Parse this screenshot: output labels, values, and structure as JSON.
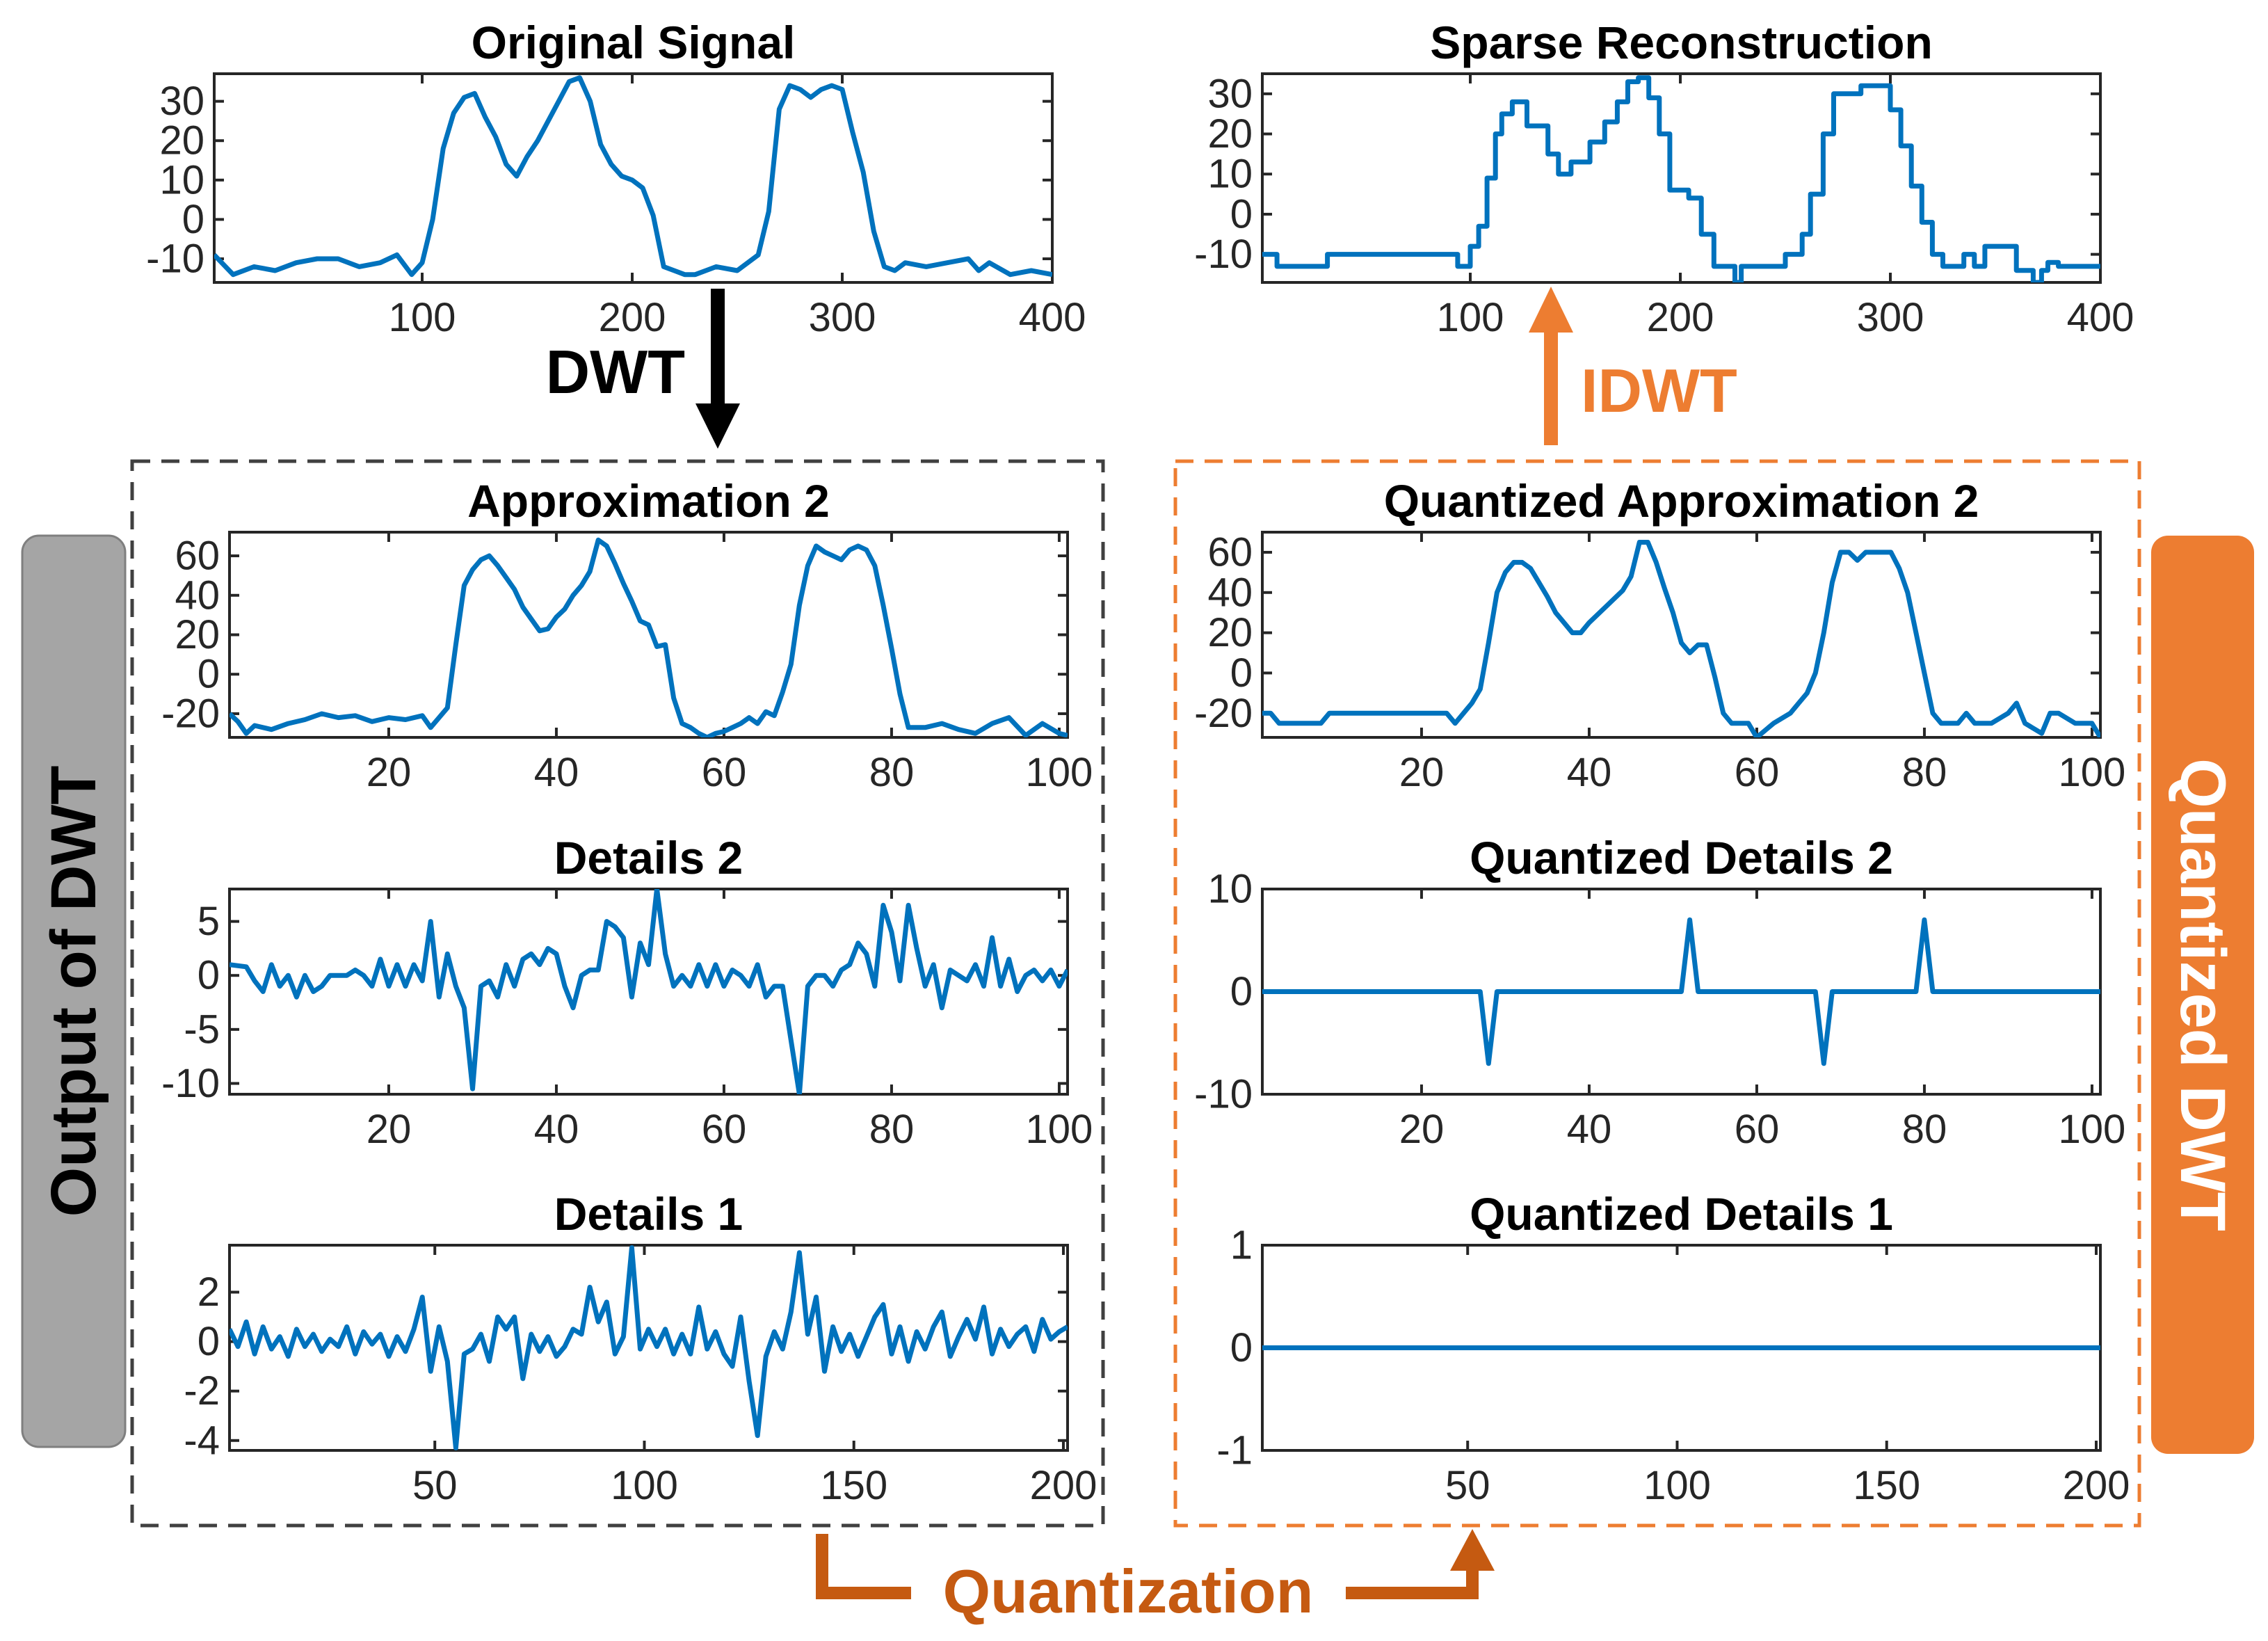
{
  "labels": {
    "dwt": "DWT",
    "idwt": "IDWT",
    "quantization": "Quantization",
    "output_of_dwt": "Output of DWT",
    "quantized_dwt": "Quantized DWT"
  },
  "colors": {
    "line": "#0072BD",
    "orange": "#ED7D31",
    "orange_dark": "#C55A11",
    "gray_box": "#A5A5A5",
    "black": "#000000"
  },
  "chart_data": [
    {
      "id": "original_signal",
      "type": "line",
      "title": "Original Signal",
      "xlim": [
        1,
        400
      ],
      "ylim": [
        -16,
        37
      ],
      "xticks": [
        100,
        200,
        300,
        400
      ],
      "yticks": [
        -10,
        0,
        10,
        20,
        30
      ],
      "x": [
        1,
        10,
        20,
        30,
        40,
        50,
        60,
        70,
        80,
        88,
        95,
        100,
        105,
        110,
        115,
        120,
        125,
        130,
        135,
        140,
        145,
        150,
        155,
        160,
        165,
        170,
        175,
        180,
        185,
        190,
        195,
        200,
        205,
        210,
        215,
        220,
        225,
        230,
        240,
        250,
        260,
        265,
        270,
        275,
        280,
        285,
        290,
        295,
        300,
        305,
        310,
        315,
        320,
        325,
        330,
        340,
        350,
        360,
        365,
        370,
        380,
        390,
        400
      ],
      "values": [
        -9,
        -14,
        -12,
        -13,
        -11,
        -10,
        -10,
        -12,
        -11,
        -9,
        -14,
        -11,
        0,
        18,
        27,
        31,
        32,
        26,
        21,
        14,
        11,
        16,
        20,
        25,
        30,
        35,
        36,
        30,
        19,
        14,
        11,
        10,
        8,
        1,
        -12,
        -13,
        -14,
        -14,
        -12,
        -13,
        -9,
        2,
        28,
        34,
        33,
        31,
        33,
        34,
        33,
        22,
        12,
        -3,
        -12,
        -13,
        -11,
        -12,
        -11,
        -10,
        -13,
        -11,
        -14,
        -13,
        -14
      ]
    },
    {
      "id": "sparse_reconstruction",
      "type": "line",
      "title": "Sparse Reconstruction",
      "xlim": [
        1,
        400
      ],
      "ylim": [
        -17,
        35
      ],
      "xticks": [
        100,
        200,
        300,
        400
      ],
      "yticks": [
        -10,
        0,
        10,
        20,
        30
      ],
      "x": [
        1,
        8,
        8,
        32,
        32,
        94,
        94,
        100,
        100,
        104,
        104,
        108,
        108,
        112,
        112,
        115,
        115,
        120,
        120,
        127,
        127,
        137,
        137,
        142,
        142,
        148,
        148,
        157,
        157,
        164,
        164,
        170,
        170,
        175,
        175,
        180,
        180,
        185,
        185,
        190,
        190,
        195,
        195,
        204,
        204,
        210,
        210,
        216,
        216,
        226,
        226,
        229,
        229,
        250,
        250,
        258,
        258,
        262,
        262,
        268,
        268,
        273,
        273,
        286,
        286,
        300,
        300,
        305,
        305,
        310,
        310,
        315,
        315,
        320,
        320,
        325,
        325,
        335,
        335,
        340,
        340,
        345,
        345,
        360,
        360,
        368,
        368,
        372,
        372,
        375,
        375,
        380,
        380,
        400
      ],
      "values": [
        -10,
        -10,
        -13,
        -13,
        -10,
        -10,
        -13,
        -13,
        -8,
        -8,
        -3,
        -3,
        9,
        9,
        20,
        20,
        25,
        25,
        28,
        28,
        22,
        22,
        15,
        15,
        10,
        10,
        13,
        13,
        18,
        18,
        23,
        23,
        28,
        28,
        33,
        33,
        34,
        34,
        29,
        29,
        20,
        20,
        6,
        6,
        4,
        4,
        -5,
        -5,
        -13,
        -13,
        -17,
        -17,
        -13,
        -13,
        -10,
        -10,
        -5,
        -5,
        5,
        5,
        20,
        20,
        30,
        30,
        32,
        32,
        26,
        26,
        17,
        17,
        7,
        7,
        -2,
        -2,
        -10,
        -10,
        -13,
        -13,
        -10,
        -10,
        -13,
        -13,
        -8,
        -8,
        -14,
        -14,
        -17,
        -17,
        -14,
        -14,
        -12,
        -12,
        -13,
        -13
      ]
    },
    {
      "id": "approximation_2",
      "type": "line",
      "title": "Approximation 2",
      "xlim": [
        1,
        101
      ],
      "ylim": [
        -32,
        72
      ],
      "xticks": [
        20,
        40,
        60,
        80,
        100
      ],
      "yticks": [
        -20,
        0,
        20,
        40,
        60
      ],
      "x": [
        1,
        2,
        3,
        4,
        6,
        8,
        10,
        12,
        14,
        16,
        18,
        20,
        22,
        24,
        25,
        26,
        27,
        28,
        29,
        30,
        31,
        32,
        33,
        34,
        35,
        36,
        37,
        38,
        39,
        40,
        41,
        42,
        43,
        44,
        45,
        46,
        47,
        48,
        49,
        50,
        51,
        52,
        53,
        54,
        55,
        56,
        57,
        58,
        59,
        60,
        61,
        62,
        63,
        64,
        65,
        66,
        67,
        68,
        69,
        70,
        71,
        72,
        73,
        74,
        75,
        76,
        77,
        78,
        79,
        80,
        81,
        82,
        84,
        86,
        88,
        90,
        92,
        94,
        96,
        98,
        100,
        101
      ],
      "values": [
        -20,
        -24,
        -30,
        -26,
        -28,
        -25,
        -23,
        -20,
        -22,
        -21,
        -24,
        -22,
        -23,
        -21,
        -27,
        -22,
        -17,
        15,
        45,
        53,
        58,
        60,
        55,
        49,
        43,
        34,
        28,
        22,
        23,
        29,
        33,
        40,
        45,
        52,
        68,
        65,
        56,
        46,
        37,
        27,
        25,
        14,
        15,
        -12,
        -25,
        -27,
        -30,
        -32,
        -30,
        -29,
        -27,
        -25,
        -22,
        -25,
        -19,
        -21,
        -9,
        5,
        35,
        55,
        65,
        62,
        60,
        58,
        63,
        65,
        63,
        55,
        35,
        13,
        -10,
        -27,
        -27,
        -25,
        -28,
        -30,
        -25,
        -22,
        -31,
        -25,
        -30,
        -31
      ]
    },
    {
      "id": "quantized_approximation_2",
      "type": "line",
      "title": "Quantized Approximation 2",
      "xlim": [
        1,
        101
      ],
      "ylim": [
        -32,
        70
      ],
      "xticks": [
        20,
        40,
        60,
        80,
        100
      ],
      "yticks": [
        -20,
        0,
        20,
        40,
        60
      ],
      "x": [
        1,
        2,
        3,
        6,
        8,
        9,
        10,
        15,
        20,
        23,
        24,
        26,
        27,
        28,
        29,
        30,
        31,
        32,
        33,
        34,
        35,
        36,
        37,
        38,
        39,
        40,
        42,
        44,
        45,
        46,
        47,
        48,
        49,
        50,
        51,
        52,
        53,
        54,
        55,
        56,
        57,
        58,
        59,
        60,
        62,
        64,
        65,
        66,
        67,
        68,
        69,
        70,
        71,
        72,
        73,
        74,
        75,
        76,
        77,
        78,
        79,
        80,
        81,
        82,
        84,
        85,
        86,
        88,
        90,
        91,
        92,
        94,
        95,
        96,
        98,
        100,
        101
      ],
      "values": [
        -20,
        -20,
        -25,
        -25,
        -25,
        -20,
        -20,
        -20,
        -20,
        -20,
        -25,
        -15,
        -8,
        15,
        40,
        50,
        55,
        55,
        52,
        45,
        38,
        30,
        25,
        20,
        20,
        25,
        33,
        41,
        48,
        65,
        65,
        55,
        42,
        30,
        15,
        10,
        14,
        14,
        -2,
        -20,
        -25,
        -25,
        -25,
        -32,
        -25,
        -20,
        -15,
        -10,
        0,
        20,
        45,
        60,
        60,
        56,
        60,
        60,
        60,
        60,
        52,
        40,
        20,
        0,
        -20,
        -25,
        -25,
        -20,
        -25,
        -25,
        -20,
        -15,
        -25,
        -30,
        -20,
        -20,
        -25,
        -25,
        -32
      ]
    },
    {
      "id": "details_2",
      "type": "line",
      "title": "Details 2",
      "xlim": [
        1,
        101
      ],
      "ylim": [
        -11,
        8
      ],
      "xticks": [
        20,
        40,
        60,
        80,
        100
      ],
      "yticks": [
        -10,
        -5,
        0,
        5
      ],
      "x": [
        1,
        3,
        4,
        5,
        6,
        7,
        8,
        9,
        10,
        11,
        12,
        13,
        14,
        15,
        16,
        17,
        18,
        19,
        20,
        21,
        22,
        23,
        24,
        25,
        26,
        27,
        28,
        29,
        30,
        31,
        32,
        33,
        34,
        35,
        36,
        37,
        38,
        39,
        40,
        41,
        42,
        43,
        44,
        45,
        46,
        47,
        48,
        49,
        50,
        51,
        52,
        53,
        54,
        55,
        56,
        57,
        58,
        59,
        60,
        61,
        62,
        63,
        64,
        65,
        66,
        67,
        68,
        69,
        70,
        71,
        72,
        73,
        74,
        75,
        76,
        77,
        78,
        79,
        80,
        81,
        82,
        83,
        84,
        85,
        86,
        87,
        88,
        89,
        90,
        91,
        92,
        93,
        94,
        95,
        96,
        97,
        98,
        99,
        100,
        101
      ],
      "values": [
        1,
        0.8,
        -0.5,
        -1.5,
        1,
        -1,
        0,
        -2,
        0,
        -1.5,
        -1,
        0,
        0,
        0,
        0.5,
        0,
        -1,
        1.5,
        -1,
        1,
        -1,
        1,
        -0.5,
        5,
        -2,
        2,
        -1,
        -3,
        -10.5,
        -1,
        -0.5,
        -2,
        1,
        -1,
        1.5,
        2,
        1,
        2.5,
        2,
        -1,
        -3,
        0,
        0.5,
        0.5,
        5,
        4.5,
        3.5,
        -2,
        3,
        1,
        8,
        2,
        -1,
        0,
        -1,
        1,
        -1,
        1,
        -1,
        0.5,
        0,
        -1,
        1,
        -2,
        -1,
        -1,
        -6,
        -11,
        -1,
        0,
        0,
        -1,
        0.5,
        1,
        3,
        2,
        -1,
        6.5,
        4,
        -0.5,
        6.5,
        2.5,
        -1,
        1,
        -3,
        0.5,
        0,
        -0.5,
        1,
        -1,
        3.5,
        -1,
        1.5,
        -1.5,
        0,
        0.5,
        -0.5,
        0.5,
        -1,
        0.5
      ]
    },
    {
      "id": "quantized_details_2",
      "type": "line",
      "title": "Quantized Details 2",
      "xlim": [
        1,
        101
      ],
      "ylim": [
        -10,
        10
      ],
      "xticks": [
        20,
        40,
        60,
        80,
        100
      ],
      "yticks": [
        -10,
        0,
        10
      ],
      "x": [
        1,
        27,
        28,
        29,
        51,
        52,
        53,
        67,
        68,
        69,
        79,
        80,
        81,
        101
      ],
      "values": [
        0,
        0,
        -7,
        0,
        0,
        7,
        0,
        0,
        -7,
        0,
        0,
        7,
        0,
        0
      ]
    },
    {
      "id": "details_1",
      "type": "line",
      "title": "Details 1",
      "xlim": [
        1,
        201
      ],
      "ylim": [
        -4.4,
        3.9
      ],
      "xticks": [
        50,
        100,
        150,
        200
      ],
      "yticks": [
        -4,
        -2,
        0,
        2
      ],
      "x": [
        1,
        3,
        5,
        7,
        9,
        11,
        13,
        15,
        17,
        19,
        21,
        23,
        25,
        27,
        29,
        31,
        33,
        35,
        37,
        39,
        41,
        43,
        45,
        47,
        49,
        51,
        53,
        55,
        57,
        59,
        61,
        63,
        65,
        67,
        69,
        71,
        73,
        75,
        77,
        79,
        81,
        83,
        85,
        87,
        89,
        91,
        93,
        95,
        97,
        99,
        101,
        103,
        105,
        107,
        109,
        111,
        113,
        115,
        117,
        119,
        121,
        123,
        125,
        127,
        129,
        131,
        133,
        135,
        137,
        139,
        141,
        143,
        145,
        147,
        149,
        151,
        153,
        155,
        157,
        159,
        161,
        163,
        165,
        167,
        169,
        171,
        173,
        175,
        177,
        179,
        181,
        183,
        185,
        187,
        189,
        191,
        193,
        195,
        197,
        199,
        201
      ],
      "values": [
        0.5,
        -0.2,
        0.8,
        -0.5,
        0.6,
        -0.3,
        0.2,
        -0.6,
        0.5,
        -0.2,
        0.3,
        -0.4,
        0.1,
        -0.2,
        0.6,
        -0.5,
        0.4,
        -0.1,
        0.3,
        -0.6,
        0.2,
        -0.4,
        0.5,
        1.8,
        -1.2,
        0.6,
        -0.8,
        -4.3,
        -0.5,
        -0.3,
        0.3,
        -0.8,
        1.0,
        0.5,
        1.0,
        -1.5,
        0.3,
        -0.4,
        0.2,
        -0.6,
        -0.2,
        0.5,
        0.3,
        2.2,
        0.8,
        1.6,
        -0.5,
        0.2,
        3.8,
        -0.3,
        0.5,
        -0.2,
        0.5,
        -0.5,
        0.3,
        -0.5,
        1.4,
        -0.3,
        0.4,
        -0.5,
        -1.0,
        1.0,
        -1.6,
        -3.8,
        -0.6,
        0.4,
        -0.3,
        1.2,
        3.6,
        0.3,
        1.8,
        -1.2,
        0.6,
        -0.4,
        0.3,
        -0.6,
        0.2,
        1.0,
        1.5,
        -0.5,
        0.6,
        -0.8,
        0.4,
        -0.3,
        0.6,
        1.2,
        -0.6,
        0.2,
        0.9,
        0.1,
        1.4,
        -0.5,
        0.5,
        -0.2,
        0.3,
        0.6,
        -0.4,
        0.9,
        0.1,
        0.4,
        0.6
      ]
    },
    {
      "id": "quantized_details_1",
      "type": "line",
      "title": "Quantized Details 1",
      "xlim": [
        1,
        201
      ],
      "ylim": [
        -1,
        1
      ],
      "xticks": [
        50,
        100,
        150,
        200
      ],
      "yticks": [
        -1,
        0,
        1
      ],
      "x": [
        1,
        201
      ],
      "values": [
        0,
        0
      ]
    }
  ]
}
